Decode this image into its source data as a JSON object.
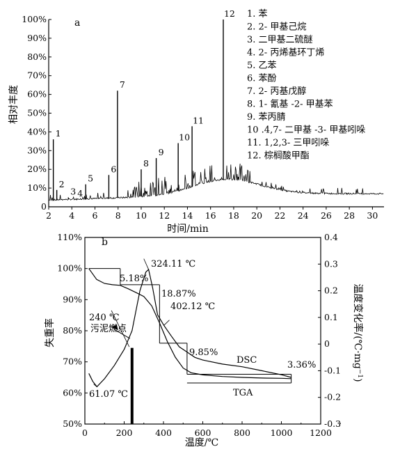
{
  "chart_data": [
    {
      "type": "line",
      "panel_label": "a",
      "xlabel": "时间/min",
      "ylabel": "相对丰度",
      "xlim": [
        2,
        31
      ],
      "ylim": [
        0,
        100
      ],
      "x_ticks": [
        "2",
        "4",
        "6",
        "8",
        "10",
        "12",
        "14",
        "16",
        "18",
        "20",
        "22",
        "24",
        "26",
        "28",
        "30"
      ],
      "y_ticks": [
        "0",
        "10%",
        "20%",
        "30%",
        "40%",
        "50%",
        "60%",
        "70%",
        "80%",
        "90%",
        "100%"
      ],
      "peaks": [
        {
          "label": "1",
          "x": 2.4,
          "y": 36
        },
        {
          "label": "2",
          "x": 2.7,
          "y": 9
        },
        {
          "label": "3",
          "x": 3.7,
          "y": 5
        },
        {
          "label": "4",
          "x": 4.3,
          "y": 4
        },
        {
          "label": "5",
          "x": 5.2,
          "y": 12
        },
        {
          "label": "6",
          "x": 7.2,
          "y": 17
        },
        {
          "label": "7",
          "x": 7.95,
          "y": 62
        },
        {
          "label": "8",
          "x": 10.0,
          "y": 20
        },
        {
          "label": "9",
          "x": 11.3,
          "y": 26
        },
        {
          "label": "10",
          "x": 13.2,
          "y": 34
        },
        {
          "label": "11",
          "x": 14.4,
          "y": 43
        },
        {
          "label": "12",
          "x": 17.1,
          "y": 100
        }
      ],
      "legend": [
        "1. 苯",
        "2. 2- 甲基己烷",
        "3. 二甲基二硫醚",
        "4. 2- 丙烯基环丁烯",
        "5. 乙苯",
        "6. 苯酚",
        "7. 2- 丙基戊醇",
        "8. 1- 氰基 -2- 甲基苯",
        "9. 苯丙腈",
        "10 .4,7- 二甲基 -3- 甲基吲哚",
        "11. 1,2,3- 三甲吲哚",
        "12. 棕榈酸甲酯"
      ]
    },
    {
      "type": "line",
      "panel_label": "b",
      "xlabel": "温度/℃",
      "ylabel_left": "失重率",
      "ylabel_right": "温度变化率/(℃·mg",
      "ylabel_right_sup": "−1",
      "ylabel_right_close": ")",
      "xlim": [
        0,
        1200
      ],
      "ylim_left": [
        50,
        110
      ],
      "ylim_right": [
        -0.3,
        0.4
      ],
      "x_ticks": [
        "0",
        "200",
        "400",
        "600",
        "800",
        "1000",
        "1200"
      ],
      "y_ticks_left": [
        "50%",
        "60%",
        "70%",
        "80%",
        "90%",
        "100%",
        "110%"
      ],
      "y_ticks_right": [
        "-0.3",
        "-0.2",
        "-0.1",
        "0",
        "0.1",
        "0.2",
        "0.3",
        "0.4"
      ],
      "series": [
        {
          "name": "TGA",
          "x": [
            20,
            60,
            100,
            140,
            180,
            220,
            260,
            300,
            340,
            380,
            420,
            460,
            500,
            540,
            600,
            700,
            800,
            900,
            1000,
            1050
          ],
          "y": [
            100,
            96.5,
            95.2,
            94.8,
            94.6,
            93.5,
            92.3,
            91.0,
            88.0,
            82.5,
            76.5,
            71.5,
            68.0,
            66.5,
            65.8,
            65.3,
            65.0,
            64.8,
            64.7,
            64.6
          ]
        },
        {
          "name": "DSC",
          "x": [
            20,
            40,
            61.07,
            100,
            150,
            200,
            240,
            280,
            310,
            324.11,
            345,
            370,
            402.12,
            440,
            480,
            520,
            560,
            600,
            700,
            800,
            900,
            1000,
            1050
          ],
          "y": [
            -0.11,
            -0.14,
            -0.16,
            -0.13,
            -0.08,
            -0.02,
            0.05,
            0.2,
            0.27,
            0.28,
            0.21,
            0.11,
            0.07,
            0.03,
            -0.01,
            -0.03,
            -0.05,
            -0.06,
            -0.075,
            -0.085,
            -0.1,
            -0.115,
            -0.125
          ]
        }
      ],
      "annotations": {
        "t_peak1": "324.11 ℃",
        "t_peak2": "402.12 ℃",
        "t_min": "61.07 ℃",
        "t_ign": "240 ℃",
        "ignition": "污泥燃点",
        "loss1": "5.18%",
        "loss2": "18.87%",
        "loss3": "9.85%",
        "loss4": "3.36%",
        "dsc_label": "DSC",
        "tga_label": "TGA"
      }
    }
  ]
}
